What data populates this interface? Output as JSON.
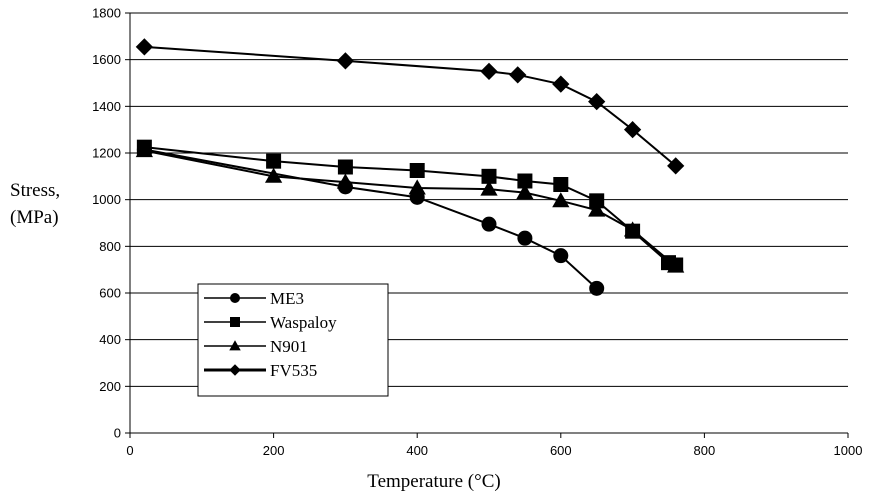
{
  "chart_data": {
    "type": "line",
    "title": "",
    "xlabel": "Temperature (°C)",
    "ylabel_lines": [
      "Stress,",
      "(MPa)"
    ],
    "xlim": [
      0,
      1000
    ],
    "ylim": [
      0,
      1800
    ],
    "xticks": [
      "0",
      "200",
      "400",
      "600",
      "800",
      "1000"
    ],
    "yticks": [
      "0",
      "200",
      "400",
      "600",
      "800",
      "1000",
      "1200",
      "1400",
      "1600",
      "1800"
    ],
    "grid": "horizontal",
    "legend_position": "bottom-left",
    "series": [
      {
        "name": "ME3",
        "marker": "circle",
        "points": [
          [
            20,
            1215
          ],
          [
            300,
            1055
          ],
          [
            400,
            1010
          ],
          [
            500,
            895
          ],
          [
            550,
            835
          ],
          [
            600,
            760
          ],
          [
            650,
            620
          ]
        ]
      },
      {
        "name": "Waspaloy",
        "marker": "square",
        "points": [
          [
            20,
            1225
          ],
          [
            200,
            1165
          ],
          [
            300,
            1140
          ],
          [
            400,
            1125
          ],
          [
            500,
            1100
          ],
          [
            550,
            1080
          ],
          [
            600,
            1065
          ],
          [
            650,
            995
          ],
          [
            700,
            865
          ],
          [
            750,
            730
          ],
          [
            760,
            720
          ]
        ]
      },
      {
        "name": "N901",
        "marker": "triangle",
        "points": [
          [
            20,
            1210
          ],
          [
            200,
            1100
          ],
          [
            300,
            1075
          ],
          [
            400,
            1050
          ],
          [
            500,
            1045
          ],
          [
            550,
            1030
          ],
          [
            600,
            995
          ],
          [
            650,
            955
          ],
          [
            700,
            870
          ],
          [
            760,
            715
          ]
        ]
      },
      {
        "name": "FV535",
        "marker": "diamond",
        "points": [
          [
            20,
            1655
          ],
          [
            300,
            1595
          ],
          [
            500,
            1550
          ],
          [
            540,
            1535
          ],
          [
            600,
            1495
          ],
          [
            650,
            1420
          ],
          [
            700,
            1300
          ],
          [
            760,
            1145
          ]
        ]
      }
    ]
  }
}
